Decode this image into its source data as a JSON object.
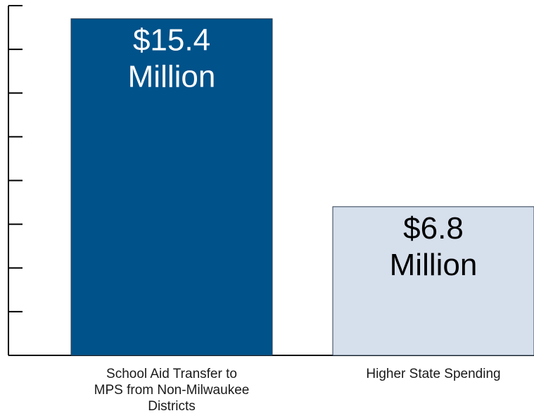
{
  "chart_data": {
    "type": "bar",
    "title": "",
    "xlabel": "",
    "ylabel": "",
    "categories": [
      "School Aid Transfer to MPS from Non-Milwaukee Districts",
      "Higher State Spending"
    ],
    "category_label_lines": [
      [
        "School Aid Transfer to",
        "MPS from Non-Milwaukee",
        "Districts"
      ],
      [
        "Higher State Spending"
      ]
    ],
    "values": [
      15.4,
      6.8
    ],
    "data_labels": [
      [
        "$15.4",
        "Million"
      ],
      [
        "$6.8",
        "Million"
      ]
    ],
    "ylim": [
      0,
      16
    ],
    "y_tick_step": 2,
    "y_tick_labels_shown": false,
    "grid": false,
    "legend": "none",
    "colors": {
      "bars": [
        "#00528a",
        "#d6dfec"
      ],
      "bar_outline": "#2c3e52",
      "data_label_text": [
        "#ffffff",
        "#000000"
      ],
      "axis": "#000000"
    }
  }
}
